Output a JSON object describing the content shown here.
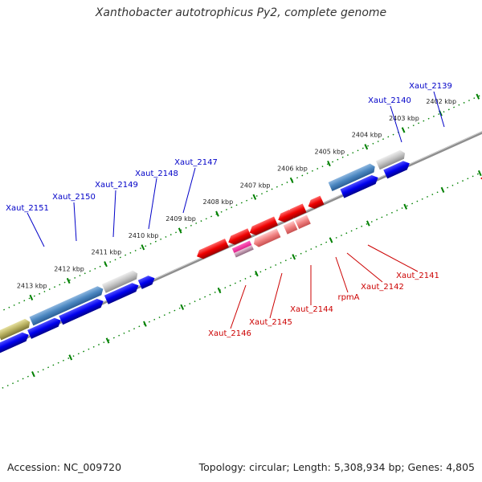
{
  "title": "Xanthobacter autotrophicus Py2, complete genome",
  "footer": {
    "accession": "Accession: NC_009720",
    "summary": "Topology: circular; Length: 5,308,934 bp; Genes: 4,805"
  },
  "colors": {
    "forward_label": "#0000c8",
    "reverse_label": "#cc0000",
    "forward_gene": "#0000ee",
    "reverse_gene": "#ee0000",
    "backbone": "#888888",
    "tick": "#008000"
  },
  "ticks": [
    "2402 kbp",
    "2403 kbp",
    "2404 kbp",
    "2405 kbp",
    "2406 kbp",
    "2407 kbp",
    "2408 kbp",
    "2409 kbp",
    "2410 kbp",
    "2411 kbp",
    "2412 kbp",
    "2413 kbp"
  ],
  "forward_genes": [
    "Xaut_2139",
    "Xaut_2140",
    "Xaut_2147",
    "Xaut_2148",
    "Xaut_2149",
    "Xaut_2150",
    "Xaut_2151"
  ],
  "reverse_genes": [
    "Xaut_2141",
    "Xaut_2142",
    "rpmA",
    "Xaut_2144",
    "Xaut_2145",
    "Xaut_2146"
  ]
}
